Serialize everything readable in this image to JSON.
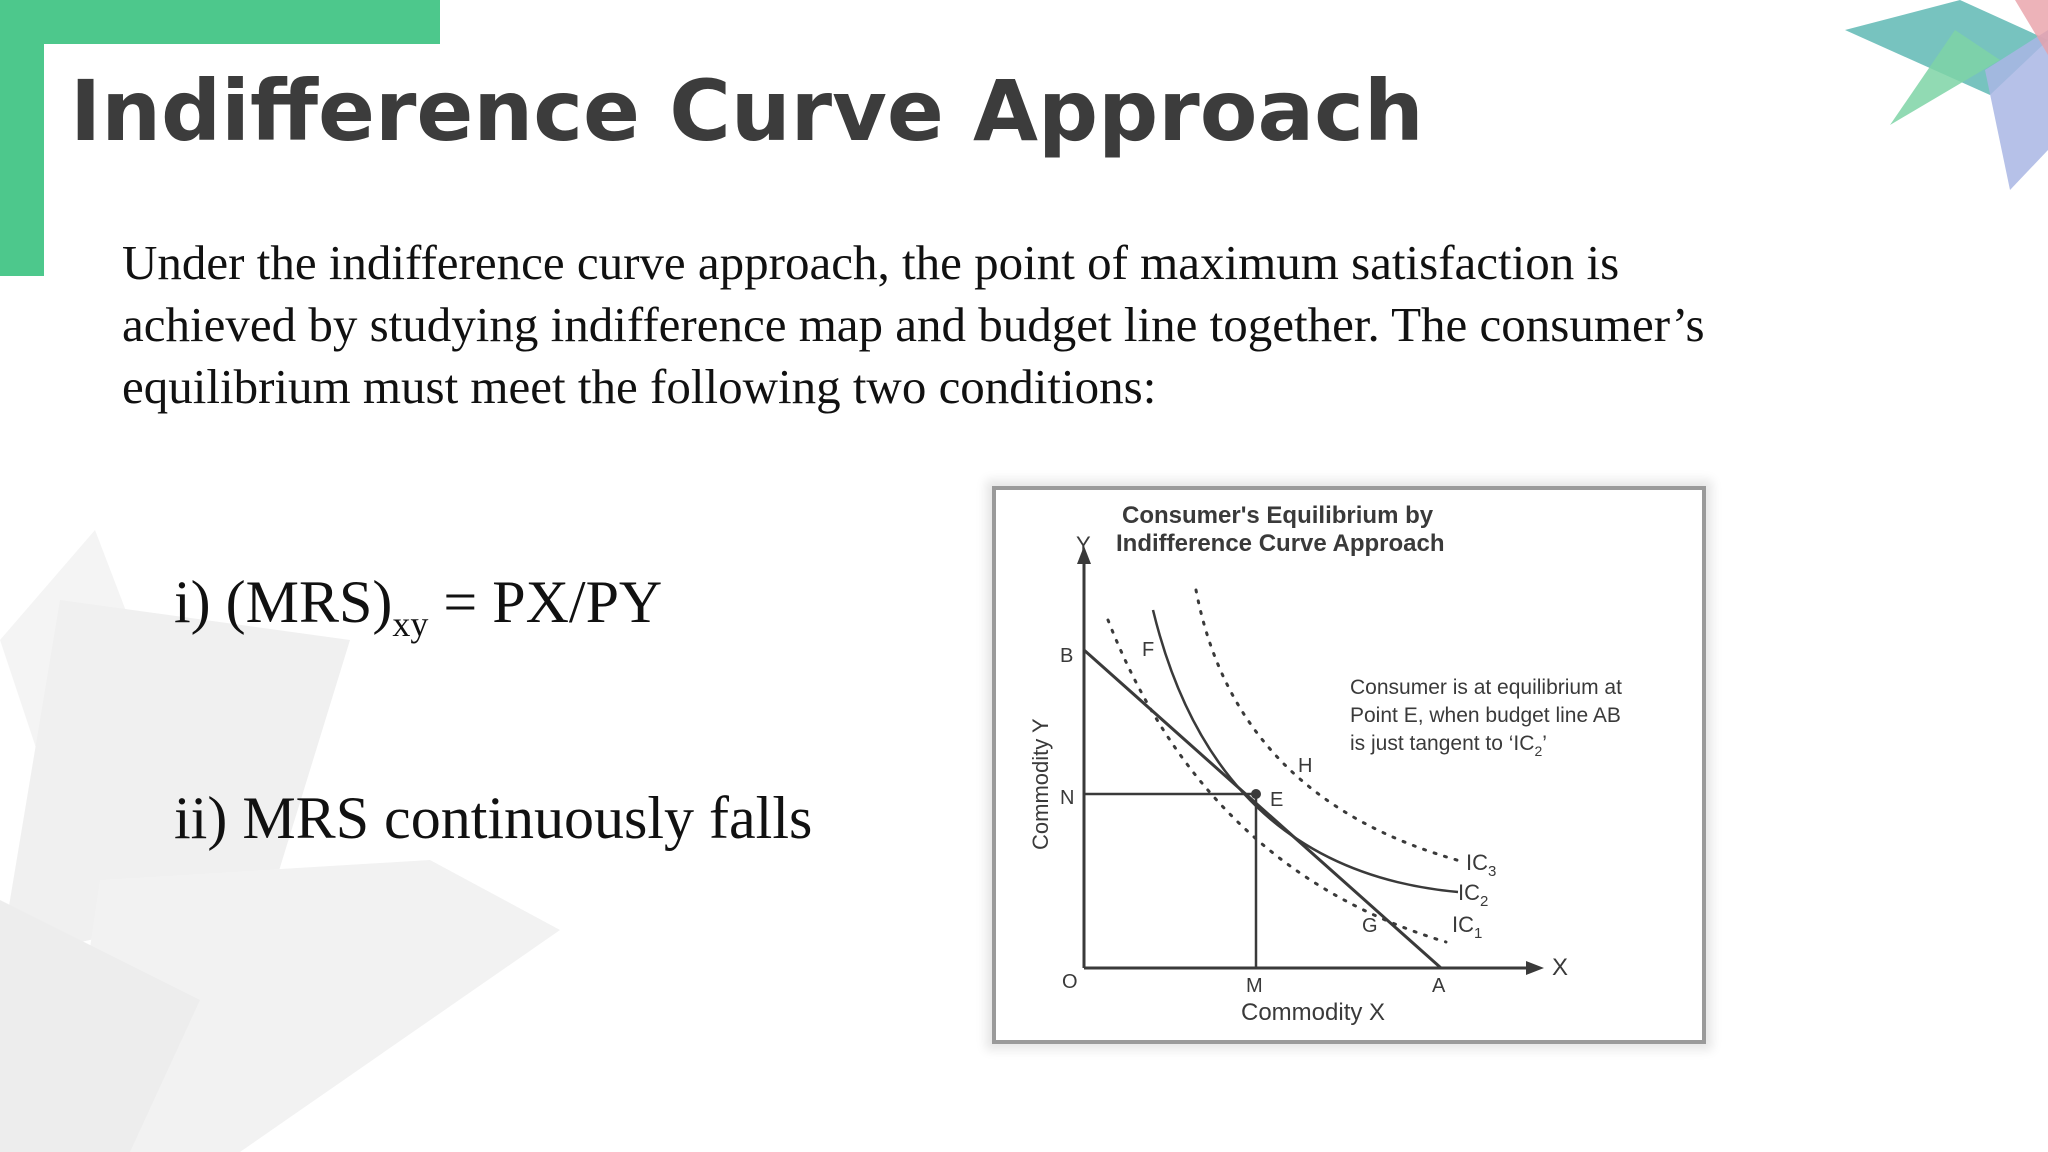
{
  "slide": {
    "title": "Indifference Curve Approach",
    "intro_lines": [
      "Under the indifference curve approach, the point of maximum satisfaction is",
      "achieved by studying indifference map and budget line together. The consumer’s",
      "equilibrium must meet the following two conditions:"
    ],
    "condition_1": {
      "prefix": "i)  (MRS)",
      "subscript": "xy",
      "suffix": " = PX/PY"
    },
    "condition_2": "ii) MRS continuously falls"
  },
  "figure": {
    "title_line1": "Consumer's Equilibrium by",
    "title_line2": "Indifference Curve Approach",
    "y_axis_letter": "Y",
    "x_axis_letter": "X",
    "y_axis_label": "Commodity Y",
    "x_axis_label": "Commodity X",
    "points": {
      "origin": "O",
      "b": "B",
      "n": "N",
      "m": "M",
      "a": "A",
      "e": "E",
      "f": "F",
      "g": "G",
      "h": "H"
    },
    "annotation_lines": [
      "Consumer is at equilibrium at",
      "Point E, when budget line AB",
      "is just tangent to ‘IC",
      "’"
    ],
    "annotation_sub": "2",
    "curves": {
      "ic_prefix": "IC",
      "ic3_sub": "3",
      "ic2_sub": "2",
      "ic1_sub": "1"
    }
  },
  "colors": {
    "accent_green": "#4dc88c",
    "title_text": "#3c3c3c",
    "diagram_ink": "#3a3a3a"
  }
}
